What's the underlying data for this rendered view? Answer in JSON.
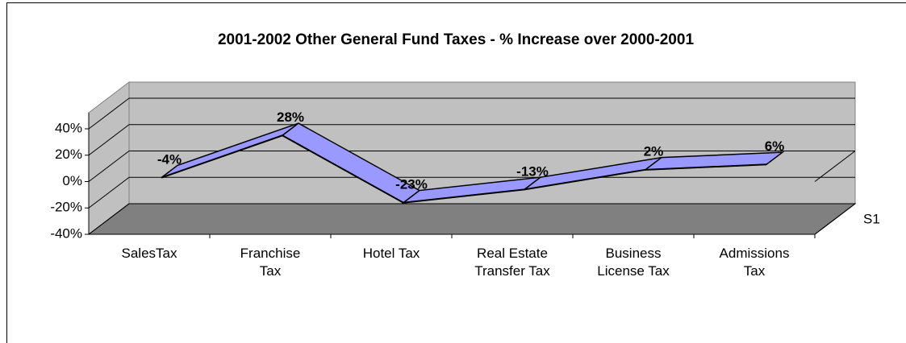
{
  "chart_data": {
    "type": "line3d",
    "title": "2001-2002 Other General Fund Taxes - % Increase over  2000-2001",
    "categories": [
      "SalesTax",
      "Franchise Tax",
      "Hotel Tax",
      "Real Estate Transfer Tax",
      "Business License Tax",
      "Admissions Tax"
    ],
    "series": [
      {
        "name": "S1",
        "color": "#9999ff",
        "values": [
          -4,
          28,
          -23,
          -13,
          2,
          6
        ],
        "value_labels": [
          "-4%",
          "28%",
          "-23%",
          "-13%",
          "2%",
          "6%"
        ]
      }
    ],
    "ylim": [
      -40,
      40
    ],
    "yticks": [
      {
        "value": -40,
        "label": "-40%"
      },
      {
        "value": -20,
        "label": "-20%"
      },
      {
        "value": 0,
        "label": "0%"
      },
      {
        "value": 20,
        "label": "20%"
      },
      {
        "value": 40,
        "label": "40%"
      }
    ],
    "grid": true
  }
}
